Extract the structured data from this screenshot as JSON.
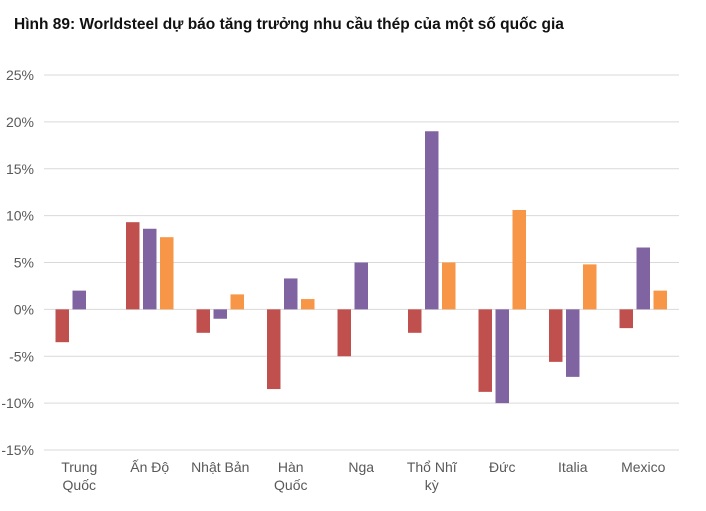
{
  "chart_data": {
    "type": "bar",
    "title": "Hình 89: Worldsteel dự báo tăng trưởng nhu cầu thép của một số quốc gia",
    "categories": [
      [
        "Trung",
        "Quốc"
      ],
      [
        "Ấn Độ"
      ],
      [
        "Nhật Bản"
      ],
      [
        "Hàn",
        "Quốc"
      ],
      [
        "Nga"
      ],
      [
        "Thổ Nhĩ",
        "kỳ"
      ],
      [
        "Đức"
      ],
      [
        "Italia"
      ],
      [
        "Mexico"
      ]
    ],
    "series": [
      {
        "color": "#c0504d",
        "values": [
          -3.5,
          9.3,
          -2.5,
          -8.5,
          -5.0,
          -2.5,
          -8.8,
          -5.6,
          -2.0
        ]
      },
      {
        "color": "#8064a2",
        "values": [
          2.0,
          8.6,
          -1.0,
          3.3,
          5.0,
          19.0,
          -10.0,
          -7.2,
          6.6
        ]
      },
      {
        "color": "#f79646",
        "values": [
          null,
          7.7,
          1.6,
          1.1,
          null,
          5.0,
          10.6,
          4.8,
          2.0
        ]
      }
    ],
    "ylim": [
      -15,
      25
    ],
    "yticks": [
      25,
      20,
      15,
      10,
      5,
      0,
      -5,
      -10,
      -15
    ],
    "ytick_labels": [
      "25%",
      "20%",
      "15%",
      "10%",
      "5%",
      "0%",
      "-5%",
      "-10%",
      "-15%"
    ],
    "xlabel": "",
    "ylabel": "",
    "grid": true,
    "legend": "none"
  }
}
